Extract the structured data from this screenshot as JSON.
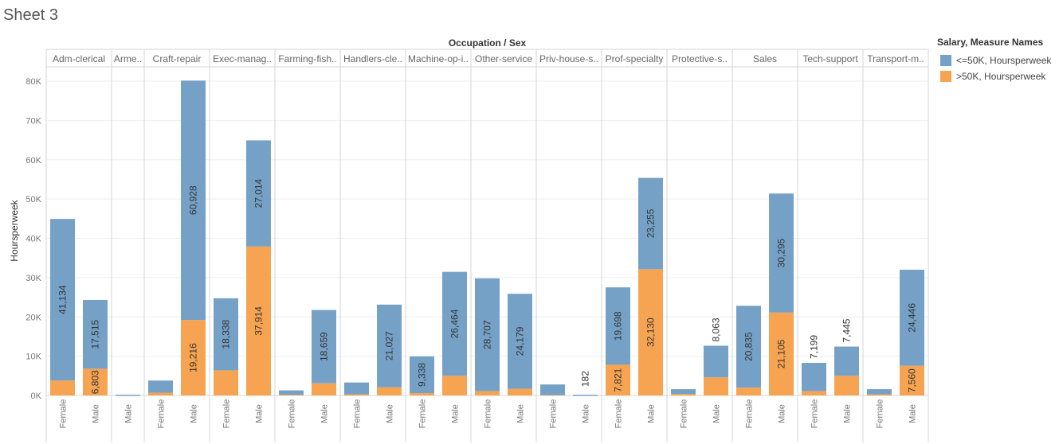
{
  "sheet_title": "Sheet 3",
  "colors": {
    "le50k": "#76a1c7",
    "gt50k": "#f7a452",
    "grid": "#eeeeee",
    "divider": "#d5d5d5"
  },
  "legend": {
    "title": "Salary, Measure Names",
    "items": [
      {
        "label": "<=50K, Hoursperweek",
        "color": "#76a1c7"
      },
      {
        "label": ">50K, Hoursperweek",
        "color": "#f7a452"
      }
    ]
  },
  "chart_data": {
    "type": "bar",
    "stacked": true,
    "title": "Occupation / Sex",
    "ylabel": "Hoursperweek",
    "ylim": [
      0,
      80000
    ],
    "yticks": [
      0,
      10000,
      20000,
      30000,
      40000,
      50000,
      60000,
      70000,
      80000
    ],
    "ytick_labels": [
      "0K",
      "10K",
      "20K",
      "30K",
      "40K",
      "50K",
      "60K",
      "70K",
      "80K"
    ],
    "series_names": [
      "<=50K, Hoursperweek",
      ">50K, Hoursperweek"
    ],
    "groups": [
      {
        "occupation": "Adm-clerical",
        "bars": [
          {
            "sex": "Female",
            "le50k": 41134,
            "gt50k": 3800,
            "le_label": "41,134",
            "gt_label": ""
          },
          {
            "sex": "Male",
            "le50k": 17515,
            "gt50k": 6803,
            "le_label": "17,515",
            "gt_label": "6,803"
          }
        ]
      },
      {
        "occupation": "Arme..",
        "bars": [
          {
            "sex": "Male",
            "le50k": 190,
            "gt50k": 0,
            "le_label": "",
            "gt_label": ""
          }
        ]
      },
      {
        "occupation": "Craft-repair",
        "bars": [
          {
            "sex": "Female",
            "le50k": 3100,
            "gt50k": 700,
            "le_label": "",
            "gt_label": ""
          },
          {
            "sex": "Male",
            "le50k": 60928,
            "gt50k": 19216,
            "le_label": "60,928",
            "gt_label": "19,216"
          }
        ]
      },
      {
        "occupation": "Exec-manag..",
        "bars": [
          {
            "sex": "Female",
            "le50k": 18338,
            "gt50k": 6400,
            "le_label": "18,338",
            "gt_label": ""
          },
          {
            "sex": "Male",
            "le50k": 27014,
            "gt50k": 37914,
            "le_label": "27,014",
            "gt_label": "37,914"
          }
        ]
      },
      {
        "occupation": "Farming-fish..",
        "bars": [
          {
            "sex": "Female",
            "le50k": 1100,
            "gt50k": 200,
            "le_label": "",
            "gt_label": ""
          },
          {
            "sex": "Male",
            "le50k": 18659,
            "gt50k": 3100,
            "le_label": "18,659",
            "gt_label": ""
          }
        ]
      },
      {
        "occupation": "Handlers-cle..",
        "bars": [
          {
            "sex": "Female",
            "le50k": 3000,
            "gt50k": 300,
            "le_label": "",
            "gt_label": ""
          },
          {
            "sex": "Male",
            "le50k": 21027,
            "gt50k": 2100,
            "le_label": "21,027",
            "gt_label": ""
          }
        ]
      },
      {
        "occupation": "Machine-op-i..",
        "bars": [
          {
            "sex": "Female",
            "le50k": 9338,
            "gt50k": 600,
            "le_label": "9,338",
            "gt_label": ""
          },
          {
            "sex": "Male",
            "le50k": 26464,
            "gt50k": 5000,
            "le_label": "26,464",
            "gt_label": ""
          }
        ]
      },
      {
        "occupation": "Other-service",
        "bars": [
          {
            "sex": "Female",
            "le50k": 28707,
            "gt50k": 1100,
            "le_label": "28,707",
            "gt_label": ""
          },
          {
            "sex": "Male",
            "le50k": 24179,
            "gt50k": 1700,
            "le_label": "24,179",
            "gt_label": ""
          }
        ]
      },
      {
        "occupation": "Priv-house-s..",
        "bars": [
          {
            "sex": "Female",
            "le50k": 2700,
            "gt50k": 100,
            "le_label": "",
            "gt_label": ""
          },
          {
            "sex": "Male",
            "le50k": 182,
            "gt50k": 0,
            "le_label": "182",
            "gt_label": ""
          }
        ]
      },
      {
        "occupation": "Prof-specialty",
        "bars": [
          {
            "sex": "Female",
            "le50k": 19698,
            "gt50k": 7821,
            "le_label": "19,698",
            "gt_label": "7,821"
          },
          {
            "sex": "Male",
            "le50k": 23255,
            "gt50k": 32130,
            "le_label": "23,255",
            "gt_label": "32,130"
          }
        ]
      },
      {
        "occupation": "Protective-s..",
        "bars": [
          {
            "sex": "Female",
            "le50k": 1200,
            "gt50k": 400,
            "le_label": "",
            "gt_label": ""
          },
          {
            "sex": "Male",
            "le50k": 8063,
            "gt50k": 4600,
            "le_label": "8,063",
            "gt_label": ""
          }
        ]
      },
      {
        "occupation": "Sales",
        "bars": [
          {
            "sex": "Female",
            "le50k": 20835,
            "gt50k": 2000,
            "le_label": "20,835",
            "gt_label": ""
          },
          {
            "sex": "Male",
            "le50k": 30295,
            "gt50k": 21105,
            "le_label": "30,295",
            "gt_label": "21,105"
          }
        ]
      },
      {
        "occupation": "Tech-support",
        "bars": [
          {
            "sex": "Female",
            "le50k": 7199,
            "gt50k": 1100,
            "le_label": "7,199",
            "gt_label": ""
          },
          {
            "sex": "Male",
            "le50k": 7445,
            "gt50k": 5000,
            "le_label": "7,445",
            "gt_label": ""
          }
        ]
      },
      {
        "occupation": "Transport-m..",
        "bars": [
          {
            "sex": "Female",
            "le50k": 1300,
            "gt50k": 300,
            "le_label": "",
            "gt_label": ""
          },
          {
            "sex": "Male",
            "le50k": 24446,
            "gt50k": 7560,
            "le_label": "24,446",
            "gt_label": "7,560"
          }
        ]
      }
    ]
  }
}
